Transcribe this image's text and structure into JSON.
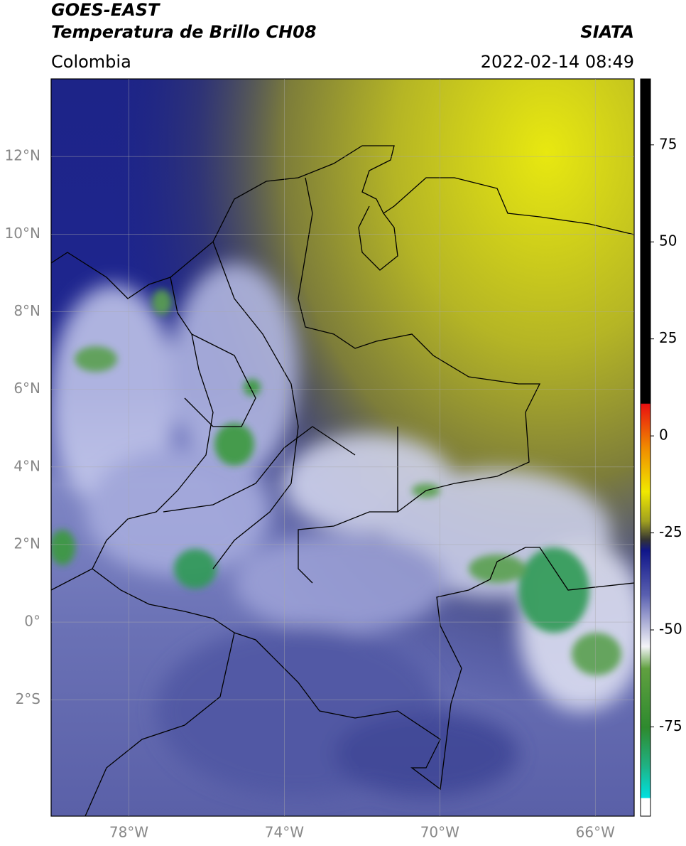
{
  "header": {
    "satellite": "GOES-EAST",
    "product": "Temperatura de Brillo CH08",
    "source": "SIATA",
    "region": "Colombia",
    "timestamp": "2022-02-14 08:49"
  },
  "map": {
    "lon_range": [
      -80,
      -65
    ],
    "lat_range": [
      -5,
      14
    ],
    "grid": true,
    "lon_ticks": [
      {
        "value": -78,
        "label": "78°W"
      },
      {
        "value": -74,
        "label": "74°W"
      },
      {
        "value": -70,
        "label": "70°W"
      },
      {
        "value": -66,
        "label": "66°W"
      }
    ],
    "lat_ticks": [
      {
        "value": 12,
        "label": "12°N"
      },
      {
        "value": 10,
        "label": "10°N"
      },
      {
        "value": 8,
        "label": "8°N"
      },
      {
        "value": 6,
        "label": "6°N"
      },
      {
        "value": 4,
        "label": "4°N"
      },
      {
        "value": 2,
        "label": "2°N"
      },
      {
        "value": 0,
        "label": "0°"
      },
      {
        "value": -2,
        "label": "2°S"
      }
    ]
  },
  "colorbar": {
    "range": [
      -98,
      92
    ],
    "ticks": [
      75,
      50,
      25,
      0,
      -25,
      -50,
      -75
    ]
  }
}
